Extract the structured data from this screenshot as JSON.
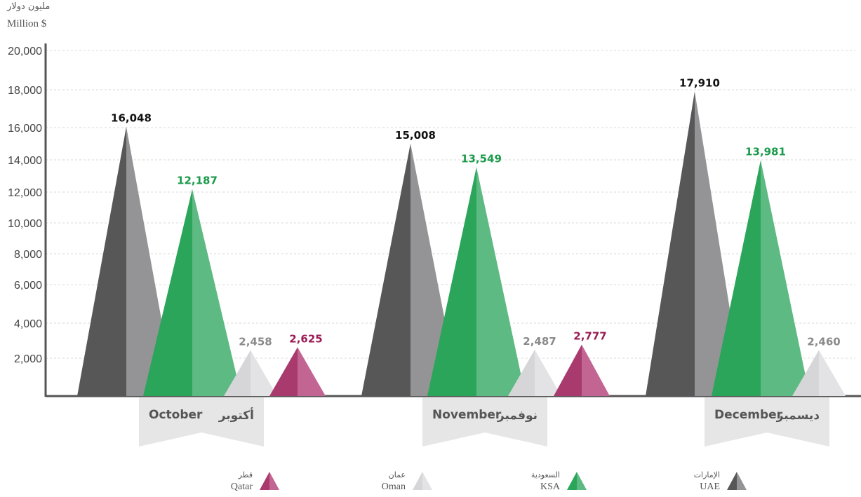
{
  "chart_data": {
    "type": "bar",
    "unit_label_ar": "مليون دولار",
    "unit_label_en": "Million $",
    "ylim": [
      0,
      20000
    ],
    "y_ticks": [
      "2,000",
      "4,000",
      "6,000",
      "8,000",
      "10,000",
      "12,000",
      "14,000",
      "16,000",
      "18,000",
      "20,000"
    ],
    "grid": true,
    "categories": [
      {
        "en": "October",
        "ar": "أكتوبر"
      },
      {
        "en": "November",
        "ar": "نوفمبر"
      },
      {
        "en": "December",
        "ar": "ديسمبر"
      }
    ],
    "series": [
      {
        "key": "uae",
        "name_en": "UAE",
        "name_ar": "الإمارات",
        "dark": "#575757",
        "light": "#949497",
        "label_color": "#111111",
        "values": [
          16048,
          15008,
          17910
        ],
        "labels": [
          "16,048",
          "15,008",
          "17,910"
        ]
      },
      {
        "key": "ksa",
        "name_en": "KSA",
        "name_ar": "السعودية",
        "dark": "#2ba55a",
        "light": "#5dba82",
        "label_color": "#1a9a4a",
        "values": [
          12187,
          13549,
          13981
        ],
        "labels": [
          "12,187",
          "13,549",
          "13,981"
        ]
      },
      {
        "key": "oman",
        "name_en": "Oman",
        "name_ar": "عمان",
        "dark": "#d6d6d8",
        "light": "#e3e3e5",
        "label_color": "#8a8a8a",
        "values": [
          2458,
          2487,
          2460
        ],
        "labels": [
          "2,458",
          "2,487",
          "2,460"
        ]
      },
      {
        "key": "qatar",
        "name_en": "Qatar",
        "name_ar": "قطر",
        "dark": "#a83a6e",
        "light": "#c26592",
        "label_color": "#9b1b55",
        "values": [
          2625,
          2777,
          null
        ],
        "labels": [
          "2,625",
          "2,777",
          ""
        ]
      }
    ],
    "legend_order": [
      "qatar",
      "oman",
      "ksa",
      "uae"
    ]
  }
}
